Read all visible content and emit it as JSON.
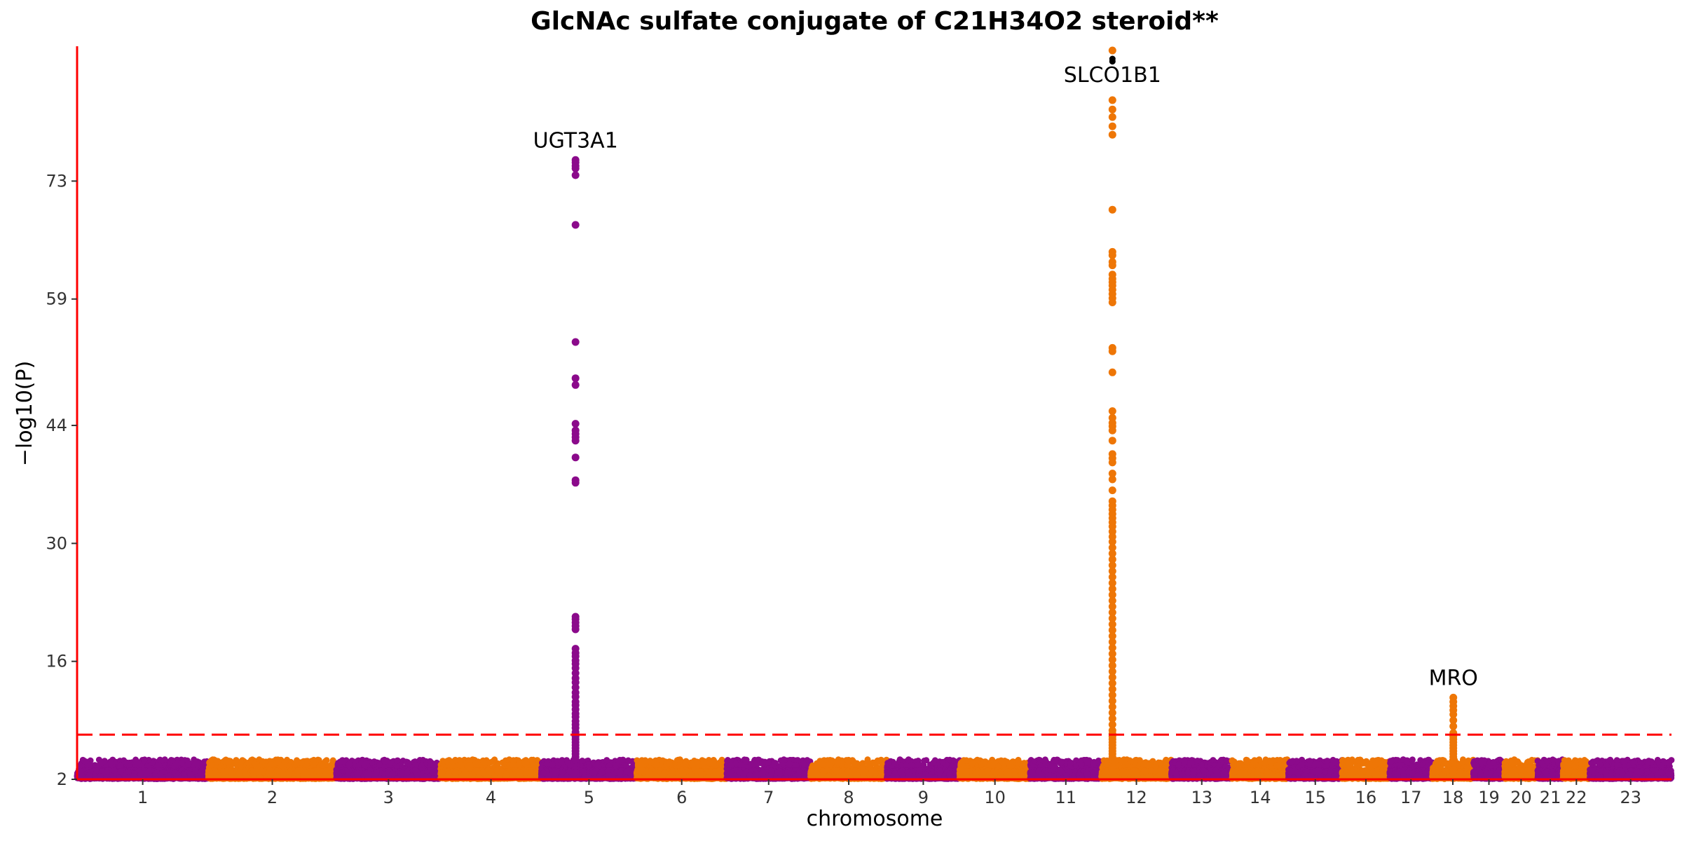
{
  "chart_data": {
    "type": "scatter",
    "title": "GlcNAc sulfate conjugate of C21H34O2 steroid**",
    "xlabel": "chromosome",
    "ylabel": "−log10(P)",
    "ylim": [
      2,
      89
    ],
    "yticks": [
      2,
      16,
      30,
      44,
      59,
      73
    ],
    "threshold": 7.3,
    "colors": {
      "odd": "#8B0A8B",
      "even": "#EE7606",
      "threshold": "#FF0000",
      "axis": "#FF0000",
      "peak_top": "#000000"
    },
    "chromosomes": [
      {
        "chr": "1",
        "size": 249
      },
      {
        "chr": "2",
        "size": 243
      },
      {
        "chr": "3",
        "size": 198
      },
      {
        "chr": "4",
        "size": 191
      },
      {
        "chr": "5",
        "size": 181
      },
      {
        "chr": "6",
        "size": 171
      },
      {
        "chr": "7",
        "size": 159
      },
      {
        "chr": "8",
        "size": 145
      },
      {
        "chr": "9",
        "size": 138
      },
      {
        "chr": "10",
        "size": 134
      },
      {
        "chr": "11",
        "size": 135
      },
      {
        "chr": "12",
        "size": 133
      },
      {
        "chr": "13",
        "size": 115
      },
      {
        "chr": "14",
        "size": 107
      },
      {
        "chr": "15",
        "size": 102
      },
      {
        "chr": "16",
        "size": 90
      },
      {
        "chr": "17",
        "size": 81
      },
      {
        "chr": "18",
        "size": 78
      },
      {
        "chr": "19",
        "size": 59
      },
      {
        "chr": "20",
        "size": 63
      },
      {
        "chr": "21",
        "size": 48
      },
      {
        "chr": "22",
        "size": 51
      },
      {
        "chr": "23",
        "size": 155
      }
    ],
    "peaks": [
      {
        "chr": "5",
        "pos": 65,
        "gene": "UGT3A1",
        "values": [
          75.5,
          75.2,
          74.8,
          74.5,
          73.7,
          67.8,
          53.9,
          49.6,
          48.8,
          44.2,
          43.4,
          43.0,
          42.6,
          42.2,
          40.2,
          37.5,
          37.2,
          21.3,
          21.0,
          20.6,
          20.2,
          19.8,
          17.5,
          17.0,
          16.6,
          16.1,
          15.7,
          15.2,
          14.6,
          14.0,
          13.5,
          12.9,
          12.3,
          11.8,
          11.2,
          10.8,
          10.3,
          9.8,
          9.4,
          8.9,
          8.5,
          8.1,
          7.6
        ]
      },
      {
        "chr": "12",
        "pos": 21,
        "gene": "SLCO1B1",
        "values": [
          88.5,
          82.6,
          81.5,
          80.6,
          79.5,
          78.5,
          69.6,
          64.6,
          64.2,
          63.4,
          63.0,
          61.9,
          61.4,
          61.0,
          60.6,
          60.1,
          59.6,
          59.1,
          58.6,
          53.2,
          52.8,
          50.3,
          45.7,
          44.9,
          44.3,
          43.9,
          43.4,
          42.2,
          40.6,
          40.1,
          39.6,
          38.3,
          37.6,
          36.3,
          35.0,
          34.5,
          34.0,
          33.5,
          33.0,
          32.5,
          32.0,
          31.4,
          30.8,
          30.2,
          29.5,
          28.8,
          28.1,
          27.4,
          26.7,
          26.0,
          25.3,
          24.6,
          23.9,
          23.2,
          22.5,
          21.8,
          21.1,
          20.4,
          19.7,
          19.0,
          18.3,
          17.6,
          16.9,
          16.2,
          15.5,
          14.8,
          14.1,
          13.4,
          12.7,
          12.0,
          11.3,
          10.6,
          9.9,
          9.2,
          8.5,
          7.8,
          7.4
        ],
        "top": [
          87.5,
          87.2
        ]
      },
      {
        "chr": "18",
        "pos": 40,
        "gene": "MRO",
        "values": [
          11.7,
          11.2,
          10.7,
          10.2,
          9.7,
          9.0,
          8.3,
          7.5
        ]
      }
    ]
  }
}
